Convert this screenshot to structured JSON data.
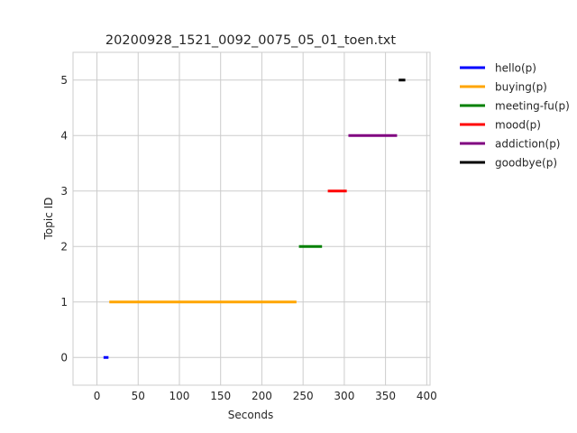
{
  "chart_data": {
    "type": "line",
    "title": "20200928_1521_0092_0075_05_01_toen.txt",
    "xlabel": "Seconds",
    "ylabel": "Topic ID",
    "xlim": [
      -29,
      404
    ],
    "ylim": [
      -0.5,
      5.5
    ],
    "xticks": [
      0,
      50,
      100,
      150,
      200,
      250,
      300,
      350,
      400
    ],
    "yticks": [
      0,
      1,
      2,
      3,
      4,
      5
    ],
    "grid": true,
    "legend_position": "outside-right",
    "series": [
      {
        "name": "hello(p)",
        "color": "#0000ff",
        "segments": [
          {
            "x": [
              8,
              14
            ],
            "y": 0
          }
        ]
      },
      {
        "name": "buying(p)",
        "color": "#ffa500",
        "segments": [
          {
            "x": [
              15,
              242
            ],
            "y": 1
          }
        ]
      },
      {
        "name": "meeting-fu(p)",
        "color": "#008000",
        "segments": [
          {
            "x": [
              245,
              273
            ],
            "y": 2
          }
        ]
      },
      {
        "name": "mood(p)",
        "color": "#ff0000",
        "segments": [
          {
            "x": [
              280,
              303
            ],
            "y": 3
          }
        ]
      },
      {
        "name": "addiction(p)",
        "color": "#800080",
        "segments": [
          {
            "x": [
              305,
              364
            ],
            "y": 4
          }
        ]
      },
      {
        "name": "goodbye(p)",
        "color": "#000000",
        "segments": [
          {
            "x": [
              366,
              374
            ],
            "y": 5
          }
        ]
      }
    ]
  }
}
